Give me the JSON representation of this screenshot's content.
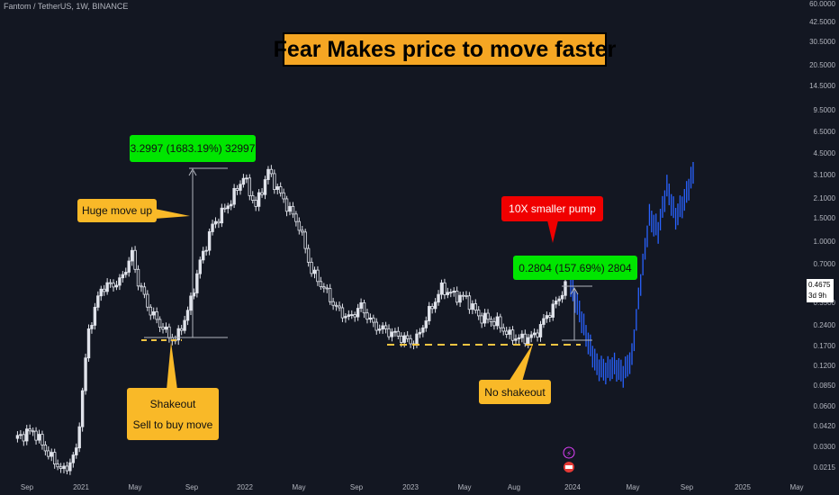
{
  "header": {
    "symbol_line": "Fantom / TetherUS, 1W, BINANCE"
  },
  "headline": "Fear Makes price to move faster",
  "annotations": {
    "huge_move": "Huge move up",
    "measure_1": "3.2997 (1683.19%) 32997",
    "shakeout_title": "Shakeout",
    "shakeout_sub": "Sell to buy move",
    "smaller_pump": "10X smaller pump",
    "measure_2": "0.2804 (157.69%) 2804",
    "no_shakeout": "No shakeout"
  },
  "price_tag": {
    "price": "0.4675",
    "countdown": "3d 9h"
  },
  "colors": {
    "background": "#131722",
    "candle": "#e0e3eb",
    "projection": "#2962ff",
    "support_line": "#f5c542",
    "label_yellow": "#f9b928",
    "label_green": "#00e600",
    "label_red": "#f00000"
  },
  "chart_data": {
    "type": "candlestick",
    "scale": "log",
    "y_tick_labels": [
      "60.0000",
      "42.5000",
      "30.5000",
      "20.5000",
      "14.5000",
      "9.5000",
      "6.5000",
      "4.5000",
      "3.1000",
      "2.1000",
      "1.5000",
      "1.0000",
      "0.7000",
      "0.4675",
      "0.3500",
      "0.2400",
      "0.1700",
      "0.1200",
      "0.0850",
      "0.0600",
      "0.0420",
      "0.0300",
      "0.0215"
    ],
    "x_tick_labels": [
      "Sep",
      "2021",
      "May",
      "Sep",
      "2022",
      "May",
      "Sep",
      "2023",
      "May",
      "Aug",
      "2024",
      "May",
      "Sep",
      "2025",
      "May"
    ],
    "key_prices": {
      "low_2021": 0.185,
      "high_2021": 3.4,
      "low_2023": 0.17,
      "high_2023": 0.48,
      "last_price": 0.4675,
      "projection_low": 0.105,
      "projection_high": 3.2
    }
  }
}
